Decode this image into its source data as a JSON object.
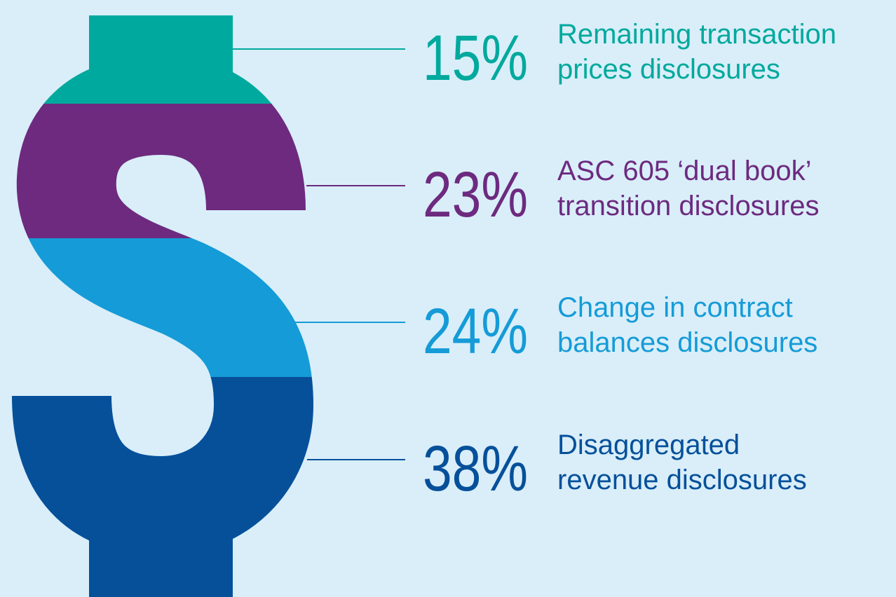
{
  "items": [
    {
      "percent": "15%",
      "label": [
        "Remaining transaction",
        "prices disclosures"
      ],
      "color": "#00a99d"
    },
    {
      "percent": "23%",
      "label": [
        "ASC 605 ‘dual book’",
        "transition disclosures"
      ],
      "color": "#6d2a7f"
    },
    {
      "percent": "24%",
      "label": [
        "Change in contract",
        "balances disclosures"
      ],
      "color": "#159bd7"
    },
    {
      "percent": "38%",
      "label": [
        "Disaggregated",
        "revenue disclosures"
      ],
      "color": "#06509a"
    }
  ]
}
